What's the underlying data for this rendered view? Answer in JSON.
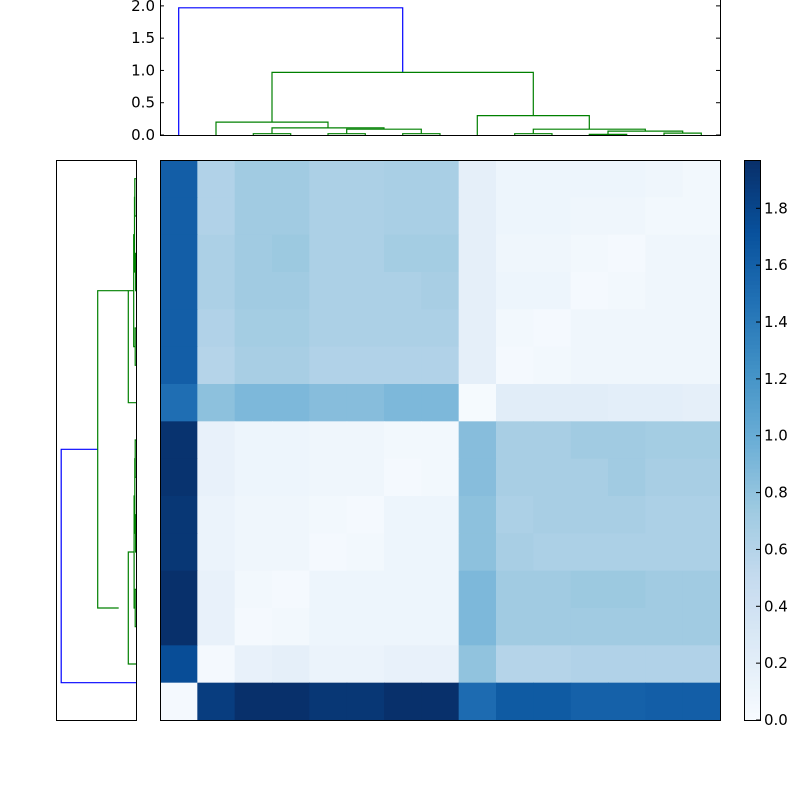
{
  "chart_data": [
    {
      "type": "dendrogram",
      "orientation": "top",
      "ylim": [
        0,
        2.0
      ],
      "ytick_labels": [
        "0.0",
        "0.5",
        "1.0",
        "1.5",
        "2.0"
      ],
      "ytick_values": [
        0,
        0.5,
        1.0,
        1.5,
        2.0
      ],
      "leaf_count": 15,
      "colors": {
        "above_threshold": "#0000ff",
        "cluster": "#008000"
      },
      "links": [
        {
          "x": [
            0.5,
            0.5,
            6.5,
            6.5
          ],
          "y": [
            0,
            1.97,
            1.97,
            0.97
          ],
          "color": "blue"
        },
        {
          "x": [
            3.0,
            3.0,
            10.0,
            10.0
          ],
          "y": [
            0.2,
            0.97,
            0.97,
            0.3
          ],
          "color": "green"
        },
        {
          "x": [
            1.5,
            1.5,
            4.5,
            4.5
          ],
          "y": [
            0,
            0.2,
            0.2,
            0.11
          ],
          "color": "green"
        },
        {
          "x": [
            3.0,
            3.0,
            6.0,
            6.0
          ],
          "y": [
            0.02,
            0.11,
            0.11,
            0.09
          ],
          "color": "green"
        },
        {
          "x": [
            2.5,
            2.5,
            3.5,
            3.5
          ],
          "y": [
            0,
            0.02,
            0.02,
            0
          ],
          "color": "green"
        },
        {
          "x": [
            5.0,
            5.0,
            7.0,
            7.0
          ],
          "y": [
            0.02,
            0.09,
            0.09,
            0.02
          ],
          "color": "green"
        },
        {
          "x": [
            4.5,
            4.5,
            5.5,
            5.5
          ],
          "y": [
            0,
            0.02,
            0.02,
            0
          ],
          "color": "green"
        },
        {
          "x": [
            6.5,
            6.5,
            7.5,
            7.5
          ],
          "y": [
            0,
            0.02,
            0.02,
            0
          ],
          "color": "green"
        },
        {
          "x": [
            8.5,
            8.5,
            11.5,
            11.5
          ],
          "y": [
            0,
            0.3,
            0.3,
            0.09
          ],
          "color": "green"
        },
        {
          "x": [
            10.0,
            10.0,
            13.0,
            13.0
          ],
          "y": [
            0.02,
            0.09,
            0.09,
            0.06
          ],
          "color": "green"
        },
        {
          "x": [
            9.5,
            9.5,
            10.5,
            10.5
          ],
          "y": [
            0,
            0.02,
            0.02,
            0
          ],
          "color": "green"
        },
        {
          "x": [
            12.0,
            12.0,
            14.0,
            14.0
          ],
          "y": [
            0.01,
            0.06,
            0.06,
            0.03
          ],
          "color": "green"
        },
        {
          "x": [
            11.5,
            11.5,
            12.5,
            12.5
          ],
          "y": [
            0,
            0.01,
            0.01,
            0
          ],
          "color": "green"
        },
        {
          "x": [
            13.5,
            13.5,
            14.5,
            14.5
          ],
          "y": [
            0,
            0.03,
            0.03,
            0
          ],
          "color": "green"
        }
      ]
    },
    {
      "type": "dendrogram",
      "orientation": "left",
      "xlim_reversed": [
        0,
        2.0
      ],
      "leaf_count": 15,
      "links": [
        {
          "pos": [
            1.0,
            1.0,
            7.25,
            7.25
          ],
          "h": [
            0,
            1.95,
            1.95,
            1.0
          ],
          "color": "blue"
        },
        {
          "pos": [
            3.0,
            3.0,
            11.5,
            11.5
          ],
          "h": [
            0.45,
            1.0,
            1.0,
            0.2
          ],
          "color": "green"
        },
        {
          "pos": [
            1.5,
            1.5,
            4.5,
            4.5
          ],
          "h": [
            0,
            0.2,
            0.2,
            0.05
          ],
          "color": "green"
        },
        {
          "pos": [
            3.0,
            3.0,
            6.0,
            6.0
          ],
          "h": [
            0.02,
            0.05,
            0.05,
            0.03
          ],
          "color": "green"
        },
        {
          "pos": [
            2.5,
            2.5,
            3.5,
            3.5
          ],
          "h": [
            0,
            0.02,
            0.02,
            0
          ],
          "color": "green"
        },
        {
          "pos": [
            5.0,
            5.0,
            7.0,
            7.0
          ],
          "h": [
            0.01,
            0.03,
            0.03,
            0.02
          ],
          "color": "green"
        },
        {
          "pos": [
            4.5,
            4.5,
            5.5,
            5.5
          ],
          "h": [
            0,
            0.01,
            0.01,
            0
          ],
          "color": "green"
        },
        {
          "pos": [
            6.5,
            6.5,
            7.5,
            7.5
          ],
          "h": [
            0,
            0.02,
            0.02,
            0
          ],
          "color": "green"
        },
        {
          "pos": [
            8.5,
            8.5,
            11.5,
            11.5
          ],
          "h": [
            0,
            0.2,
            0.2,
            0.06
          ],
          "color": "green"
        },
        {
          "pos": [
            10.0,
            10.0,
            13.0,
            13.0
          ],
          "h": [
            0.02,
            0.06,
            0.06,
            0.04
          ],
          "color": "green"
        },
        {
          "pos": [
            9.5,
            9.5,
            10.5,
            10.5
          ],
          "h": [
            0,
            0.02,
            0.02,
            0
          ],
          "color": "green"
        },
        {
          "pos": [
            12.0,
            12.0,
            14.0,
            14.0
          ],
          "h": [
            0.01,
            0.04,
            0.04,
            0.03
          ],
          "color": "green"
        },
        {
          "pos": [
            11.5,
            11.5,
            12.5,
            12.5
          ],
          "h": [
            0,
            0.01,
            0.01,
            0
          ],
          "color": "green"
        },
        {
          "pos": [
            13.5,
            13.5,
            14.5,
            14.5
          ],
          "h": [
            0,
            0.03,
            0.03,
            0
          ],
          "color": "green"
        }
      ]
    },
    {
      "type": "heatmap",
      "colormap": "Blues",
      "vmin": 0.0,
      "vmax": 1.97,
      "rows": 15,
      "cols": 15,
      "values": [
        [
          1.62,
          0.62,
          0.72,
          0.72,
          0.65,
          0.65,
          0.67,
          0.67,
          0.18,
          0.1,
          0.1,
          0.1,
          0.1,
          0.08,
          0.05
        ],
        [
          1.62,
          0.62,
          0.72,
          0.72,
          0.65,
          0.65,
          0.67,
          0.67,
          0.18,
          0.1,
          0.1,
          0.08,
          0.08,
          0.05,
          0.05
        ],
        [
          1.62,
          0.65,
          0.72,
          0.75,
          0.65,
          0.65,
          0.7,
          0.7,
          0.18,
          0.08,
          0.08,
          0.05,
          0.03,
          0.08,
          0.08
        ],
        [
          1.62,
          0.65,
          0.72,
          0.72,
          0.65,
          0.65,
          0.65,
          0.68,
          0.18,
          0.1,
          0.1,
          0.03,
          0.05,
          0.08,
          0.08
        ],
        [
          1.62,
          0.62,
          0.7,
          0.7,
          0.65,
          0.65,
          0.65,
          0.65,
          0.18,
          0.05,
          0.03,
          0.08,
          0.08,
          0.08,
          0.08
        ],
        [
          1.62,
          0.6,
          0.68,
          0.68,
          0.62,
          0.62,
          0.62,
          0.62,
          0.18,
          0.03,
          0.05,
          0.08,
          0.08,
          0.08,
          0.08
        ],
        [
          1.5,
          0.82,
          0.9,
          0.9,
          0.85,
          0.85,
          0.9,
          0.9,
          0.02,
          0.22,
          0.22,
          0.22,
          0.2,
          0.2,
          0.18
        ],
        [
          1.95,
          0.15,
          0.1,
          0.1,
          0.08,
          0.08,
          0.05,
          0.05,
          0.85,
          0.68,
          0.68,
          0.72,
          0.72,
          0.7,
          0.7
        ],
        [
          1.95,
          0.15,
          0.1,
          0.1,
          0.08,
          0.08,
          0.03,
          0.05,
          0.85,
          0.68,
          0.68,
          0.68,
          0.72,
          0.68,
          0.68
        ],
        [
          1.92,
          0.12,
          0.08,
          0.08,
          0.05,
          0.03,
          0.1,
          0.1,
          0.82,
          0.65,
          0.68,
          0.68,
          0.68,
          0.65,
          0.65
        ],
        [
          1.92,
          0.12,
          0.08,
          0.08,
          0.03,
          0.05,
          0.1,
          0.1,
          0.82,
          0.68,
          0.65,
          0.65,
          0.65,
          0.65,
          0.65
        ],
        [
          1.97,
          0.15,
          0.05,
          0.03,
          0.1,
          0.1,
          0.1,
          0.1,
          0.9,
          0.72,
          0.72,
          0.75,
          0.75,
          0.72,
          0.72
        ],
        [
          1.97,
          0.15,
          0.03,
          0.05,
          0.1,
          0.1,
          0.1,
          0.1,
          0.9,
          0.72,
          0.72,
          0.72,
          0.72,
          0.72,
          0.72
        ],
        [
          1.75,
          0.03,
          0.15,
          0.18,
          0.12,
          0.12,
          0.15,
          0.15,
          0.8,
          0.6,
          0.6,
          0.62,
          0.62,
          0.62,
          0.62
        ],
        [
          0.03,
          1.87,
          1.97,
          1.97,
          1.92,
          1.92,
          1.97,
          1.97,
          1.52,
          1.65,
          1.65,
          1.6,
          1.6,
          1.62,
          1.62
        ]
      ]
    },
    {
      "type": "colorbar",
      "colormap": "Blues",
      "range": [
        0.0,
        1.97
      ],
      "tick_labels": [
        "0.0",
        "0.2",
        "0.4",
        "0.6",
        "0.8",
        "1.0",
        "1.2",
        "1.4",
        "1.6",
        "1.8"
      ],
      "tick_values": [
        0.0,
        0.2,
        0.4,
        0.6,
        0.8,
        1.0,
        1.2,
        1.4,
        1.6,
        1.8
      ]
    }
  ]
}
